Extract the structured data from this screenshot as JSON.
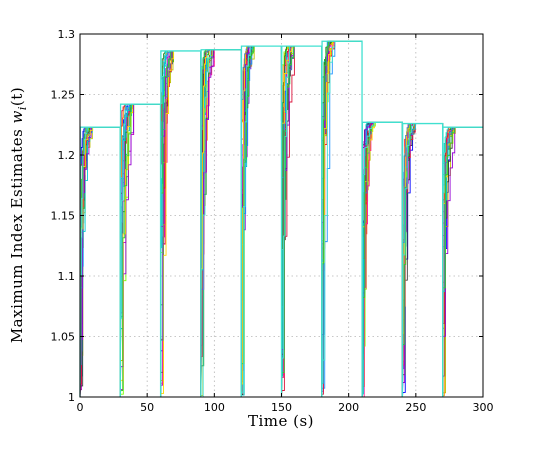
{
  "chart_data": {
    "type": "line",
    "title": "",
    "xlabel": "Time (s)",
    "ylabel": "Maximum Index Estimates w_i(t)",
    "ylabel_text": "Maximum Index Estimates ",
    "ylabel_symbol": "w",
    "ylabel_subscript": "i",
    "ylabel_suffix": "(t)",
    "xlim": [
      0,
      300
    ],
    "ylim": [
      1,
      1.3
    ],
    "xticks": [
      0,
      50,
      100,
      150,
      200,
      250,
      300
    ],
    "xtick_labels": [
      "0",
      "50",
      "100",
      "150",
      "200",
      "250",
      "300"
    ],
    "yticks": [
      1,
      1.05,
      1.1,
      1.15,
      1.2,
      1.25,
      1.3
    ],
    "ytick_labels": [
      "1",
      "1.05",
      "1.1",
      "1.15",
      "1.2",
      "1.25",
      "1.3"
    ],
    "grid": true,
    "legend": "none",
    "segments": [
      {
        "start": 0,
        "plateau": 1.223
      },
      {
        "start": 30,
        "plateau": 1.242
      },
      {
        "start": 60,
        "plateau": 1.286
      },
      {
        "start": 90,
        "plateau": 1.287
      },
      {
        "start": 120,
        "plateau": 1.29
      },
      {
        "start": 150,
        "plateau": 1.29
      },
      {
        "start": 180,
        "plateau": 1.294
      },
      {
        "start": 210,
        "plateau": 1.227
      },
      {
        "start": 240,
        "plateau": 1.226
      },
      {
        "start": 270,
        "plateau": 1.223
      }
    ],
    "segment_length": 30,
    "converge_time": 10,
    "agent_count": 20,
    "series_colors": [
      "#0000ff",
      "#00aa00",
      "#ff0000",
      "#00bfbf",
      "#bf00bf",
      "#bfbf00",
      "#404040",
      "#ff8c00",
      "#8a2be2",
      "#7fff00",
      "#1e90ff",
      "#ff1493",
      "#228b22",
      "#dc143c",
      "#00ced1",
      "#9400d3",
      "#ffd700",
      "#4682b4",
      "#32cd32",
      "#40e0d0"
    ],
    "envelope_color": "#40e0d0"
  }
}
